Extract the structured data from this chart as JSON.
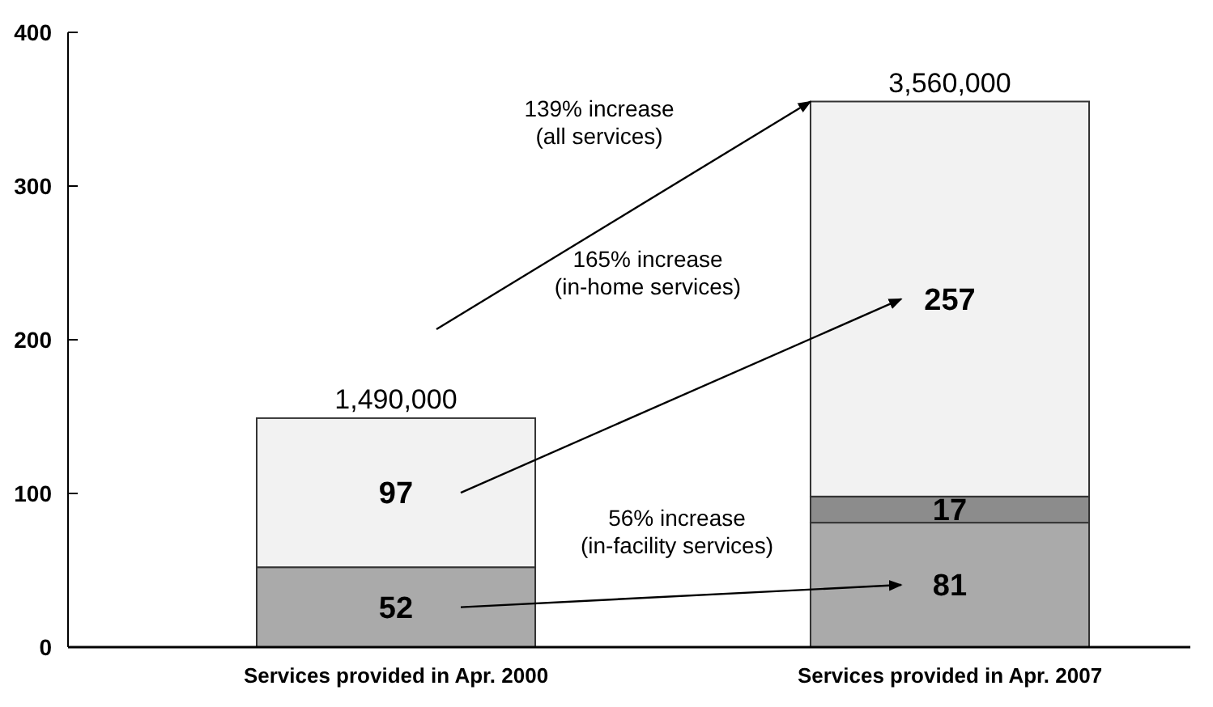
{
  "chart_data": {
    "type": "bar",
    "stacked": true,
    "categories": [
      "Services provided in Apr. 2000",
      "Services provided in Apr. 2007"
    ],
    "series": [
      {
        "color": "#aaaaaa",
        "values": [
          52,
          81
        ]
      },
      {
        "color": "#8c8c8c",
        "values": [
          null,
          17
        ]
      },
      {
        "color": "#f2f2f2",
        "values": [
          97,
          257
        ]
      }
    ],
    "data_labels": true,
    "ylim": [
      0,
      400
    ],
    "yticks": [
      0,
      100,
      200,
      300,
      400
    ],
    "grid": false,
    "annotations": [
      {
        "text": "1,490,000",
        "x": "Services provided in Apr. 2000",
        "y": 149
      },
      {
        "text": "3,560,000",
        "x": "Services provided in Apr. 2007",
        "y": 355
      },
      "139% increase\n(all services)",
      "165% increase\n(in-home services)",
      "56% increase\n(in-facility services)"
    ]
  }
}
